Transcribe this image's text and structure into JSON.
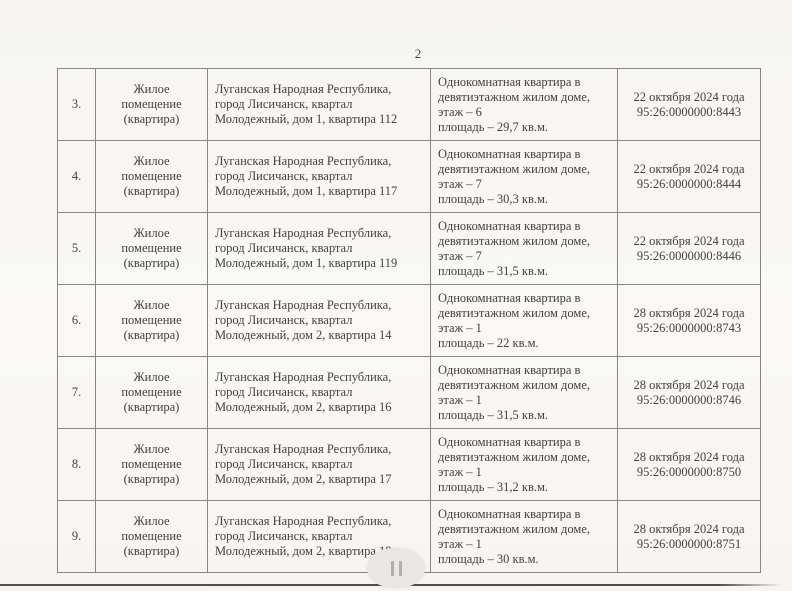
{
  "page": {
    "number": "2"
  },
  "table": {
    "rows": [
      {
        "num": "3.",
        "type": "Жилое помещение (квартира)",
        "address": "Луганская Народная Республика, город Лисичанск, квартал Молодежный, дом 1, квартира 112",
        "description": [
          "Однокомнатная квартира в девятиэтажном жилом доме,",
          "этаж – 6",
          "площадь – 29,7 кв.м."
        ],
        "date": "22 октября 2024 года",
        "cadastral": "95:26:0000000:8443"
      },
      {
        "num": "4.",
        "type": "Жилое помещение (квартира)",
        "address": "Луганская Народная Республика, город Лисичанск, квартал Молодежный, дом 1, квартира 117",
        "description": [
          "Однокомнатная квартира в девятиэтажном жилом доме,",
          "этаж – 7",
          "площадь – 30,3 кв.м."
        ],
        "date": "22 октября 2024 года",
        "cadastral": "95:26:0000000:8444"
      },
      {
        "num": "5.",
        "type": "Жилое помещение (квартира)",
        "address": "Луганская Народная Республика, город Лисичанск, квартал Молодежный, дом 1, квартира 119",
        "description": [
          "Однокомнатная квартира в девятиэтажном жилом доме,",
          "этаж – 7",
          "площадь – 31,5 кв.м."
        ],
        "date": "22 октября 2024 года",
        "cadastral": "95:26:0000000:8446"
      },
      {
        "num": "6.",
        "type": "Жилое помещение (квартира)",
        "address": "Луганская Народная Республика, город Лисичанск, квартал Молодежный, дом 2, квартира 14",
        "description": [
          "Однокомнатная квартира в девятиэтажном жилом доме,",
          "этаж – 1",
          "площадь – 22 кв.м."
        ],
        "date": "28 октября 2024 года",
        "cadastral": "95:26:0000000:8743"
      },
      {
        "num": "7.",
        "type": "Жилое помещение (квартира)",
        "address": "Луганская Народная Республика, город Лисичанск, квартал Молодежный, дом 2, квартира 16",
        "description": [
          "Однокомнатная квартира в девятиэтажном жилом доме,",
          "этаж – 1",
          "площадь – 31,5 кв.м."
        ],
        "date": "28 октября 2024 года",
        "cadastral": "95:26:0000000:8746"
      },
      {
        "num": "8.",
        "type": "Жилое помещение (квартира)",
        "address": "Луганская Народная Республика, город Лисичанск, квартал Молодежный, дом 2, квартира 17",
        "description": [
          "Однокомнатная квартира в девятиэтажном жилом доме,",
          "этаж – 1",
          "площадь – 31,2 кв.м."
        ],
        "date": "28 октября 2024 года",
        "cadastral": "95:26:0000000:8750"
      },
      {
        "num": "9.",
        "type": "Жилое помещение (квартира)",
        "address": "Луганская Народная Республика, город Лисичанск, квартал Молодежный, дом 2, квартира 18",
        "description": [
          "Однокомнатная квартира в девятиэтажном жилом доме,",
          "этаж – 1",
          "площадь – 30 кв.м."
        ],
        "date": "28 октября 2024 года",
        "cadastral": "95:26:0000000:8751"
      }
    ]
  },
  "footer": {
    "pause_icon": "pause"
  },
  "colors": {
    "page_background": "#f8f7f4",
    "table_border": "#8a867f",
    "text": "#44413a",
    "bottom_line": "#504e4a",
    "pill_background": "#e9e7e3",
    "pill_bars": "#b1afab"
  }
}
